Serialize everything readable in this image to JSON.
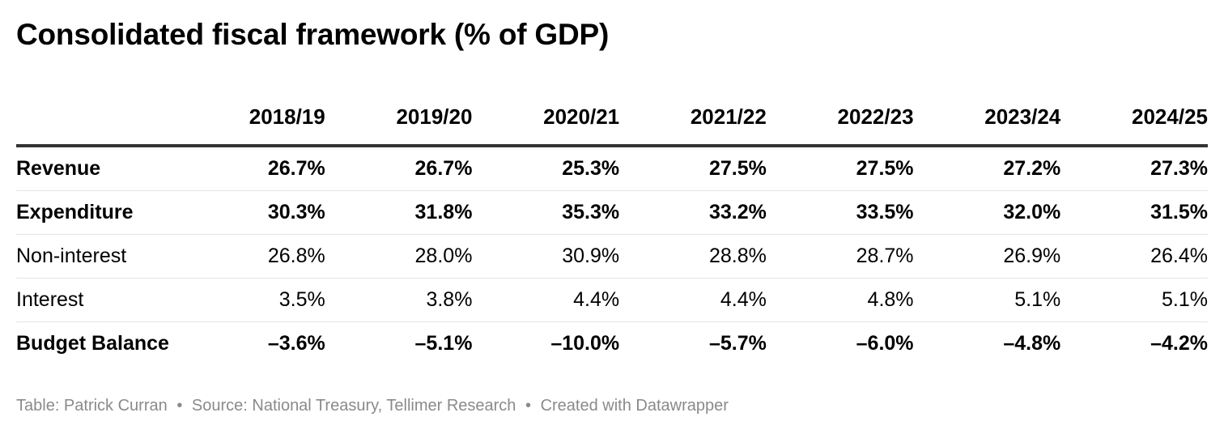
{
  "title": "Consolidated fiscal framework (% of GDP)",
  "chart_data": {
    "type": "table",
    "title": "Consolidated fiscal framework (% of GDP)",
    "columns": [
      "2018/19",
      "2019/20",
      "2020/21",
      "2021/22",
      "2022/23",
      "2023/24",
      "2024/25"
    ],
    "rows": [
      {
        "label": "Revenue",
        "bold": true,
        "values": [
          "26.7%",
          "26.7%",
          "25.3%",
          "27.5%",
          "27.5%",
          "27.2%",
          "27.3%"
        ]
      },
      {
        "label": "Expenditure",
        "bold": true,
        "values": [
          "30.3%",
          "31.8%",
          "35.3%",
          "33.2%",
          "33.5%",
          "32.0%",
          "31.5%"
        ]
      },
      {
        "label": "Non-interest",
        "bold": false,
        "values": [
          "26.8%",
          "28.0%",
          "30.9%",
          "28.8%",
          "28.7%",
          "26.9%",
          "26.4%"
        ]
      },
      {
        "label": "Interest",
        "bold": false,
        "values": [
          "3.5%",
          "3.8%",
          "4.4%",
          "4.4%",
          "4.8%",
          "5.1%",
          "5.1%"
        ]
      },
      {
        "label": "Budget Balance",
        "bold": true,
        "values": [
          "–3.6%",
          "–5.1%",
          "–10.0%",
          "–5.7%",
          "–6.0%",
          "–4.8%",
          "–4.2%"
        ]
      }
    ]
  },
  "footer": {
    "table_credit": "Table: Patrick Curran",
    "separator": "•",
    "source": "Source: National Treasury, Tellimer Research",
    "created_with": "Created with Datawrapper"
  },
  "colors": {
    "text": "#000000",
    "header_rule": "#333333",
    "row_rule": "#e4e4e4",
    "footer_text": "#8a8a8a"
  }
}
